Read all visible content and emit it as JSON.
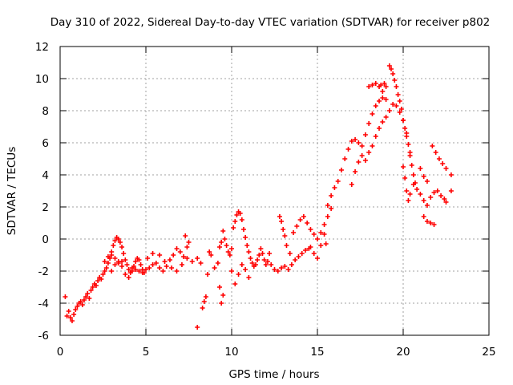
{
  "chart_data": {
    "type": "scatter",
    "title": "Day 310 of 2022, Sidereal Day-to-day VTEC variation (SDTVAR) for receiver p802",
    "xlabel": "GPS time / hours",
    "ylabel": "SDTVAR / TECUs",
    "xlim": [
      0,
      25
    ],
    "ylim": [
      -6,
      12
    ],
    "x_ticks": [
      0,
      5,
      10,
      15,
      20,
      25
    ],
    "y_ticks": [
      -6,
      -4,
      -2,
      0,
      2,
      4,
      6,
      8,
      10,
      12
    ],
    "grid": true,
    "marker": "+",
    "series": [
      {
        "name": "SDTVAR",
        "color": "#ff0000",
        "points": [
          [
            0.3,
            -3.6
          ],
          [
            0.4,
            -4.8
          ],
          [
            0.5,
            -4.5
          ],
          [
            0.6,
            -4.9
          ],
          [
            0.7,
            -5.1
          ],
          [
            0.8,
            -4.7
          ],
          [
            0.9,
            -4.4
          ],
          [
            1.0,
            -4.2
          ],
          [
            1.1,
            -4.0
          ],
          [
            1.2,
            -3.9
          ],
          [
            1.3,
            -4.1
          ],
          [
            1.4,
            -3.8
          ],
          [
            1.5,
            -3.6
          ],
          [
            1.6,
            -3.4
          ],
          [
            1.7,
            -3.7
          ],
          [
            1.8,
            -3.2
          ],
          [
            1.9,
            -3.0
          ],
          [
            2.0,
            -2.8
          ],
          [
            2.1,
            -2.9
          ],
          [
            2.2,
            -2.6
          ],
          [
            2.3,
            -2.4
          ],
          [
            2.4,
            -2.5
          ],
          [
            2.5,
            -2.2
          ],
          [
            2.6,
            -2.0
          ],
          [
            2.7,
            -1.8
          ],
          [
            2.8,
            -1.5
          ],
          [
            2.9,
            -1.2
          ],
          [
            3.0,
            -0.8
          ],
          [
            3.1,
            -0.4
          ],
          [
            3.2,
            -0.1
          ],
          [
            3.3,
            0.1
          ],
          [
            3.4,
            0.0
          ],
          [
            3.5,
            -0.2
          ],
          [
            3.6,
            -0.5
          ],
          [
            3.7,
            -0.9
          ],
          [
            3.8,
            -1.3
          ],
          [
            3.9,
            -1.6
          ],
          [
            4.0,
            -1.9
          ],
          [
            4.1,
            -2.1
          ],
          [
            4.2,
            -2.0
          ],
          [
            4.3,
            -1.7
          ],
          [
            4.4,
            -1.4
          ],
          [
            4.5,
            -1.2
          ],
          [
            4.6,
            -1.3
          ],
          [
            4.7,
            -1.6
          ],
          [
            4.8,
            -1.9
          ],
          [
            4.9,
            -2.1
          ],
          [
            3.0,
            -2.0
          ],
          [
            3.2,
            -1.6
          ],
          [
            3.4,
            -1.4
          ],
          [
            3.6,
            -1.7
          ],
          [
            3.8,
            -2.2
          ],
          [
            4.0,
            -2.4
          ],
          [
            2.6,
            -1.4
          ],
          [
            2.8,
            -1.1
          ],
          [
            3.0,
            -1.0
          ],
          [
            3.2,
            -1.2
          ],
          [
            3.4,
            -1.5
          ],
          [
            3.6,
            -1.4
          ],
          [
            4.2,
            -1.8
          ],
          [
            4.4,
            -1.9
          ],
          [
            4.6,
            -2.0
          ],
          [
            4.8,
            -2.1
          ],
          [
            5.0,
            -1.9
          ],
          [
            5.2,
            -1.8
          ],
          [
            5.4,
            -1.6
          ],
          [
            5.6,
            -1.5
          ],
          [
            5.8,
            -1.8
          ],
          [
            6.0,
            -2.0
          ],
          [
            6.2,
            -1.7
          ],
          [
            6.4,
            -1.3
          ],
          [
            6.6,
            -1.0
          ],
          [
            6.8,
            -0.6
          ],
          [
            7.0,
            -0.8
          ],
          [
            7.2,
            -1.1
          ],
          [
            7.4,
            -0.5
          ],
          [
            7.5,
            -0.2
          ],
          [
            7.3,
            0.2
          ],
          [
            5.1,
            -1.2
          ],
          [
            5.4,
            -0.9
          ],
          [
            5.8,
            -1.0
          ],
          [
            6.1,
            -1.4
          ],
          [
            6.5,
            -1.8
          ],
          [
            6.8,
            -2.0
          ],
          [
            7.1,
            -1.6
          ],
          [
            7.4,
            -1.2
          ],
          [
            7.7,
            -1.4
          ],
          [
            8.0,
            -1.2
          ],
          [
            8.2,
            -1.5
          ],
          [
            8.0,
            -5.5
          ],
          [
            8.3,
            -4.3
          ],
          [
            8.4,
            -3.9
          ],
          [
            8.5,
            -3.6
          ],
          [
            8.6,
            -2.2
          ],
          [
            8.8,
            -1.0
          ],
          [
            8.7,
            -0.8
          ],
          [
            9.0,
            -1.8
          ],
          [
            9.2,
            -1.5
          ],
          [
            9.3,
            -3.0
          ],
          [
            9.4,
            -4.0
          ],
          [
            9.5,
            -3.5
          ],
          [
            9.3,
            -0.5
          ],
          [
            9.4,
            -0.2
          ],
          [
            9.5,
            0.5
          ],
          [
            9.6,
            0.0
          ],
          [
            9.7,
            -0.4
          ],
          [
            9.8,
            -0.8
          ],
          [
            9.9,
            -1.0
          ],
          [
            10.0,
            -0.6
          ],
          [
            10.1,
            0.7
          ],
          [
            10.2,
            1.1
          ],
          [
            10.3,
            1.5
          ],
          [
            10.4,
            1.7
          ],
          [
            10.5,
            1.6
          ],
          [
            10.6,
            1.2
          ],
          [
            10.7,
            0.6
          ],
          [
            10.8,
            0.1
          ],
          [
            10.9,
            -0.4
          ],
          [
            11.0,
            -0.8
          ],
          [
            11.1,
            -1.2
          ],
          [
            11.2,
            -1.5
          ],
          [
            11.3,
            -1.7
          ],
          [
            11.4,
            -1.6
          ],
          [
            11.5,
            -1.3
          ],
          [
            11.6,
            -1.0
          ],
          [
            11.7,
            -0.6
          ],
          [
            11.8,
            -0.9
          ],
          [
            11.9,
            -1.3
          ],
          [
            12.0,
            -1.6
          ],
          [
            12.1,
            -1.4
          ],
          [
            12.2,
            -0.9
          ],
          [
            10.0,
            -2.0
          ],
          [
            10.2,
            -2.8
          ],
          [
            10.4,
            -2.2
          ],
          [
            10.6,
            -1.6
          ],
          [
            10.8,
            -1.9
          ],
          [
            11.0,
            -2.4
          ],
          [
            12.3,
            -1.6
          ],
          [
            12.5,
            -1.9
          ],
          [
            12.7,
            -2.0
          ],
          [
            12.9,
            -1.8
          ],
          [
            13.1,
            -1.7
          ],
          [
            13.3,
            -1.9
          ],
          [
            13.5,
            -1.6
          ],
          [
            13.7,
            -1.3
          ],
          [
            13.9,
            -1.1
          ],
          [
            14.1,
            -0.9
          ],
          [
            14.3,
            -0.7
          ],
          [
            14.5,
            -0.6
          ],
          [
            12.8,
            1.4
          ],
          [
            12.9,
            1.1
          ],
          [
            13.0,
            0.6
          ],
          [
            13.1,
            0.2
          ],
          [
            13.2,
            -0.4
          ],
          [
            13.4,
            -0.9
          ],
          [
            13.6,
            0.4
          ],
          [
            13.8,
            0.8
          ],
          [
            14.0,
            1.2
          ],
          [
            14.2,
            1.4
          ],
          [
            14.4,
            1.0
          ],
          [
            14.6,
            0.6
          ],
          [
            14.8,
            0.3
          ],
          [
            15.0,
            0.0
          ],
          [
            15.2,
            0.4
          ],
          [
            15.4,
            0.9
          ],
          [
            15.6,
            1.4
          ],
          [
            15.8,
            1.9
          ],
          [
            14.6,
            -0.5
          ],
          [
            14.8,
            -0.9
          ],
          [
            15.0,
            -1.2
          ],
          [
            15.2,
            -0.4
          ],
          [
            15.4,
            0.3
          ],
          [
            15.5,
            -0.3
          ],
          [
            15.6,
            2.1
          ],
          [
            15.8,
            2.7
          ],
          [
            16.0,
            3.2
          ],
          [
            16.2,
            3.6
          ],
          [
            16.4,
            4.3
          ],
          [
            16.6,
            5.0
          ],
          [
            16.8,
            5.6
          ],
          [
            17.0,
            6.1
          ],
          [
            17.2,
            6.2
          ],
          [
            17.4,
            6.0
          ],
          [
            17.6,
            5.8
          ],
          [
            17.8,
            6.5
          ],
          [
            18.0,
            7.2
          ],
          [
            18.2,
            7.8
          ],
          [
            18.4,
            8.3
          ],
          [
            18.6,
            8.6
          ],
          [
            18.8,
            8.8
          ],
          [
            18.7,
            9.6
          ],
          [
            18.9,
            9.7
          ],
          [
            19.0,
            9.5
          ],
          [
            19.2,
            10.8
          ],
          [
            19.3,
            10.6
          ],
          [
            19.4,
            10.3
          ],
          [
            19.5,
            9.9
          ],
          [
            19.6,
            9.5
          ],
          [
            19.7,
            9.0
          ],
          [
            19.8,
            8.6
          ],
          [
            19.9,
            8.1
          ],
          [
            20.0,
            7.4
          ],
          [
            20.1,
            6.9
          ],
          [
            20.2,
            6.4
          ],
          [
            20.3,
            5.9
          ],
          [
            20.4,
            5.2
          ],
          [
            20.5,
            4.6
          ],
          [
            20.6,
            4.0
          ],
          [
            20.7,
            3.5
          ],
          [
            17.0,
            3.4
          ],
          [
            17.2,
            4.2
          ],
          [
            17.4,
            4.8
          ],
          [
            17.6,
            5.2
          ],
          [
            17.8,
            4.9
          ],
          [
            18.0,
            5.4
          ],
          [
            18.2,
            5.8
          ],
          [
            18.4,
            6.4
          ],
          [
            18.6,
            6.9
          ],
          [
            18.8,
            7.3
          ],
          [
            19.0,
            7.6
          ],
          [
            19.2,
            8.0
          ],
          [
            19.4,
            8.4
          ],
          [
            19.6,
            8.3
          ],
          [
            19.8,
            7.9
          ],
          [
            20.0,
            7.4
          ],
          [
            20.2,
            6.6
          ],
          [
            20.4,
            5.4
          ],
          [
            18.0,
            9.5
          ],
          [
            18.2,
            9.6
          ],
          [
            18.4,
            9.7
          ],
          [
            18.6,
            9.5
          ],
          [
            18.8,
            9.2
          ],
          [
            19.0,
            8.7
          ],
          [
            20.0,
            4.5
          ],
          [
            20.1,
            3.8
          ],
          [
            20.2,
            3.0
          ],
          [
            20.3,
            2.4
          ],
          [
            20.4,
            2.8
          ],
          [
            20.6,
            3.4
          ],
          [
            20.8,
            3.1
          ],
          [
            21.0,
            2.8
          ],
          [
            21.2,
            2.4
          ],
          [
            21.4,
            2.1
          ],
          [
            21.6,
            2.6
          ],
          [
            21.8,
            2.9
          ],
          [
            22.0,
            3.0
          ],
          [
            22.2,
            2.7
          ],
          [
            22.4,
            2.5
          ],
          [
            22.5,
            2.3
          ],
          [
            21.2,
            1.4
          ],
          [
            21.4,
            1.1
          ],
          [
            21.6,
            1.0
          ],
          [
            21.8,
            0.9
          ],
          [
            21.7,
            5.8
          ],
          [
            21.9,
            5.4
          ],
          [
            22.1,
            5.0
          ],
          [
            22.3,
            4.7
          ],
          [
            22.5,
            4.4
          ],
          [
            22.8,
            4.0
          ],
          [
            22.8,
            3.0
          ],
          [
            21.0,
            4.4
          ],
          [
            21.2,
            3.9
          ],
          [
            21.4,
            3.6
          ]
        ]
      }
    ]
  }
}
